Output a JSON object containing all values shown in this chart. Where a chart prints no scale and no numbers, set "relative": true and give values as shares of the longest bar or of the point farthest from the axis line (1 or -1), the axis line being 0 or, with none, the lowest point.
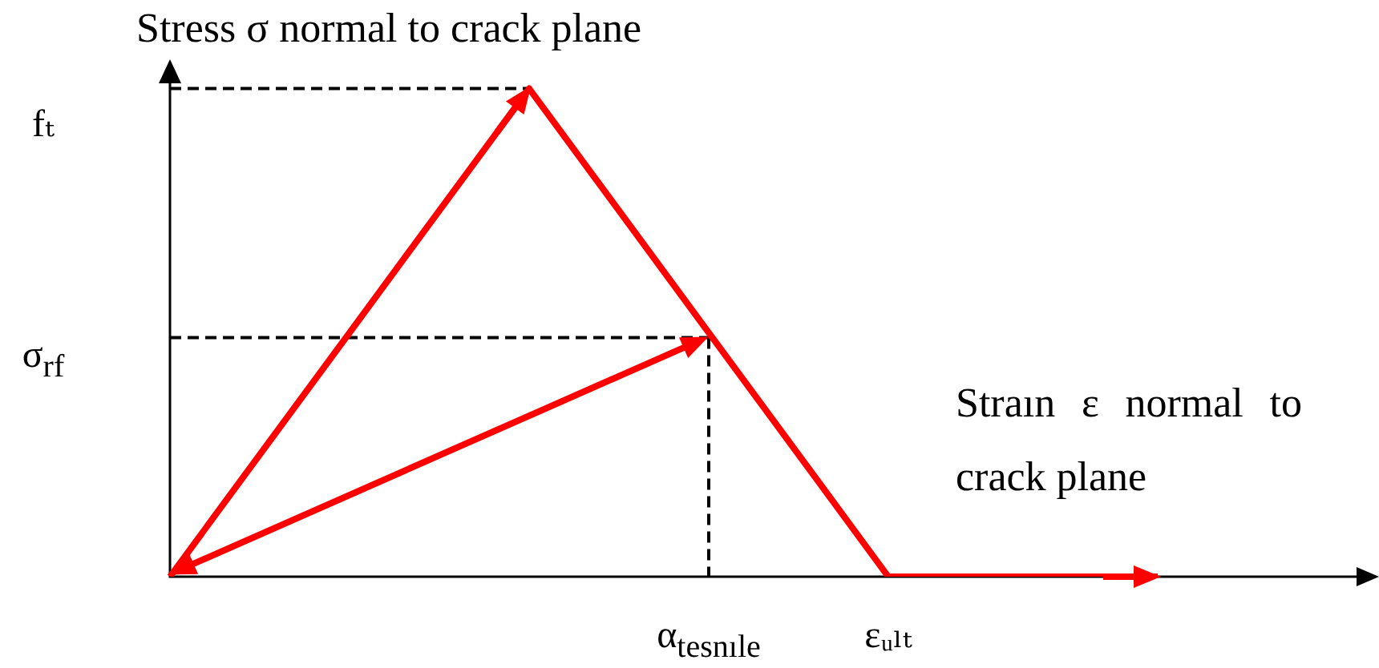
{
  "chart_data": {
    "type": "line",
    "relative": true,
    "ylabel": "Stress σ normal to crack plane",
    "xlabel": "Straın ε normal to crack plane",
    "categories": [
      null,
      null,
      null,
      null,
      null,
      null,
      "α$_{tesnıle}$",
      null,
      "εᵤₗₜ",
      null,
      null,
      null
    ],
    "annotations": [
      "fₜ",
      "σ$_{rf}$"
    ],
    "series": [
      {
        "color": "#ff0000",
        "values": [
          0,
          0.25,
          0.5,
          0.75,
          1,
          0.75,
          0.5,
          0.25,
          0,
          0,
          0,
          0
        ]
      },
      {
        "color": "#000000",
        "line_style": "dashed",
        "values": [
          1,
          1,
          1,
          1,
          1,
          null,
          null,
          null,
          null,
          null,
          null,
          null
        ]
      },
      {
        "color": "#000000",
        "line_style": "dashed",
        "values": [
          0.49,
          0.49,
          0.49,
          0.49,
          0.49,
          0.49,
          0.49,
          null,
          null,
          null,
          null,
          null
        ]
      },
      {
        "color": "#000000",
        "line_style": "dashed",
        "x": [
          "α$_{tesnıle}$",
          "α$_{tesnıle}$"
        ],
        "values": [
          0.49,
          0
        ]
      }
    ]
  }
}
